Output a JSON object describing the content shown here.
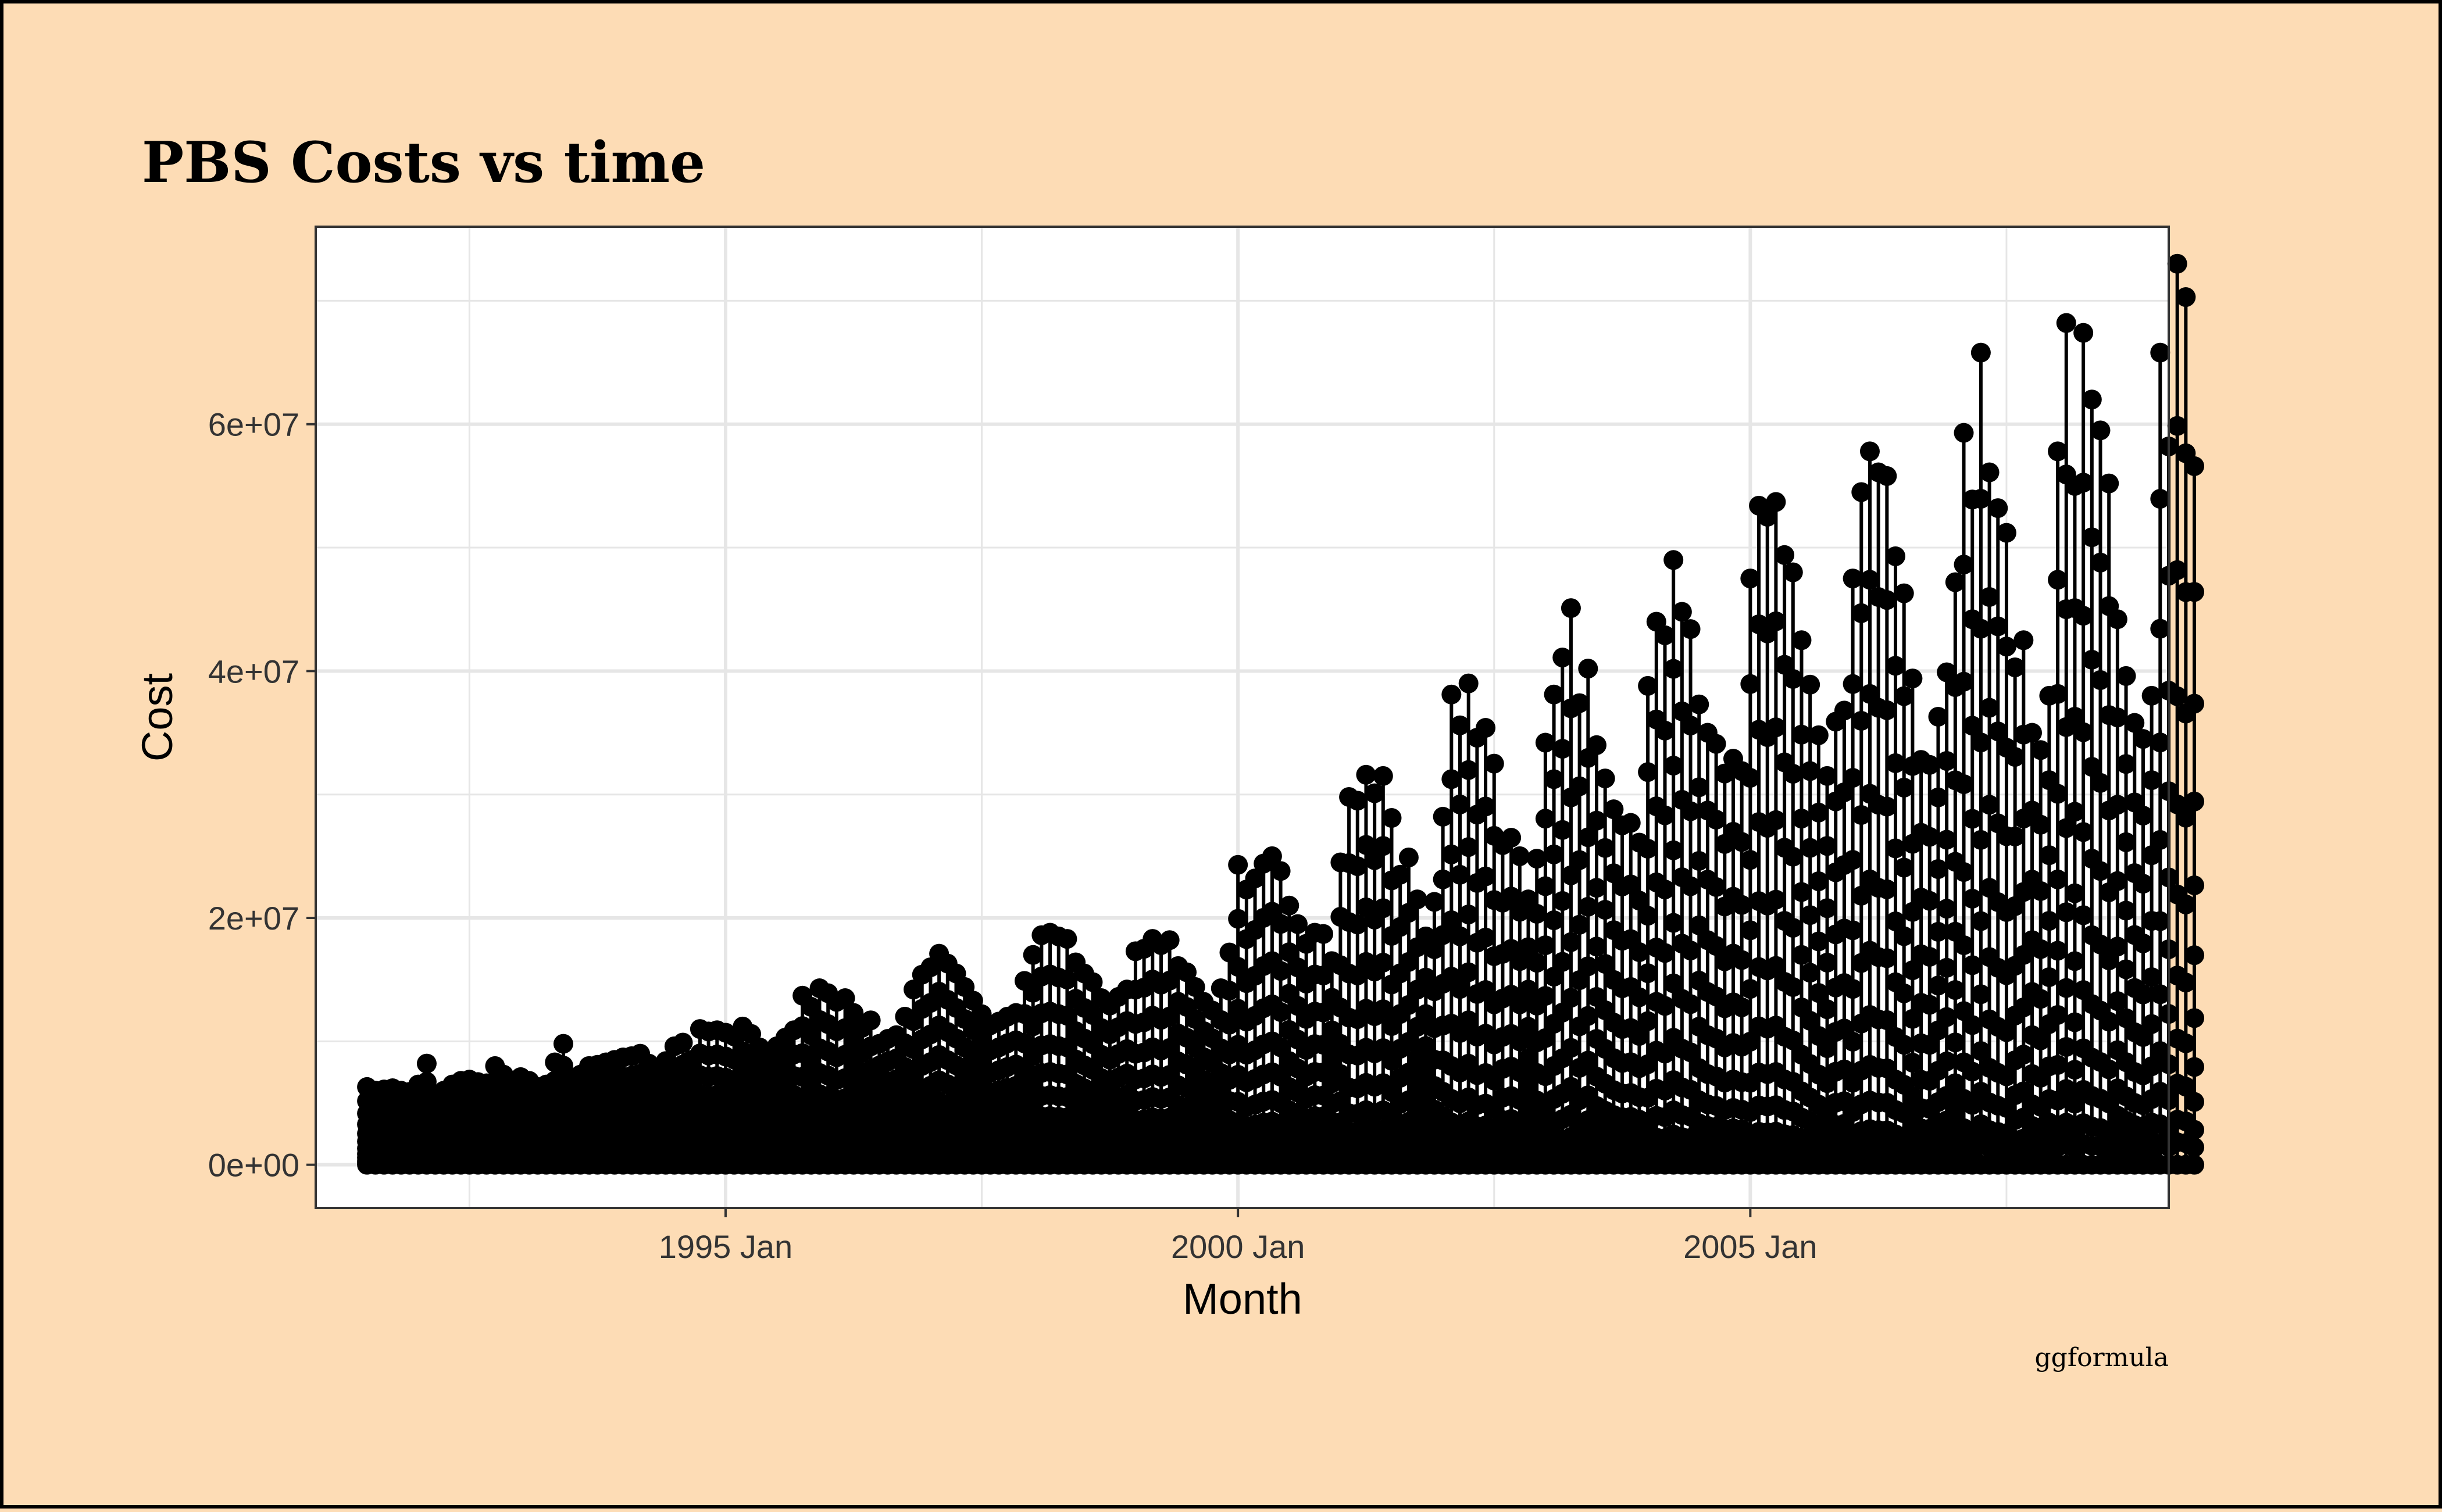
{
  "chart_data": {
    "type": "line",
    "title": "PBS Costs vs time",
    "xlabel": "Month",
    "ylabel": "Cost",
    "caption": "ggformula",
    "x_ticks": [
      "1995 Jan",
      "2000 Jan",
      "2005 Jan"
    ],
    "y_ticks": [
      "0e+00",
      "2e+07",
      "4e+07",
      "6e+07"
    ],
    "xlim": [
      "1991-01",
      "2009-02"
    ],
    "ylim": [
      -3500000,
      76000000
    ],
    "grid": true,
    "legend": "none",
    "colors": {
      "background": "#fddcb5",
      "panel": "#ffffff",
      "marks": "#000000",
      "grid": "#e6e6e6"
    },
    "start_month": "1991-07",
    "monthly_peak": [
      6300000,
      6000000,
      6100000,
      6200000,
      6000000,
      5900000,
      6500000,
      8200000,
      5600000,
      6000000,
      6500000,
      6800000,
      6900000,
      6700000,
      6600000,
      8000000,
      7300000,
      6800000,
      7100000,
      6800000,
      6300000,
      6500000,
      8300000,
      9800000,
      6800000,
      7300000,
      8000000,
      8100000,
      8300000,
      8500000,
      8700000,
      8800000,
      9000000,
      8200000,
      7800000,
      8400000,
      9600000,
      9900000,
      8500000,
      11000000,
      10800000,
      10900000,
      10700000,
      10400000,
      11200000,
      10600000,
      9500000,
      8700000,
      9600000,
      10300000,
      10900000,
      13700000,
      12800000,
      14300000,
      13900000,
      13200000,
      13500000,
      12300000,
      11100000,
      11700000,
      9800000,
      10200000,
      10500000,
      12000000,
      14200000,
      15400000,
      16000000,
      17100000,
      16300000,
      15500000,
      14400000,
      13300000,
      12200000,
      11300000,
      11600000,
      12000000,
      12300000,
      14900000,
      17000000,
      18600000,
      18800000,
      18500000,
      18300000,
      16400000,
      15500000,
      14800000,
      13500000,
      12900000,
      13600000,
      14200000,
      17300000,
      17500000,
      18300000,
      17800000,
      18200000,
      16100000,
      15600000,
      14400000,
      13200000,
      12500000,
      14300000,
      17200000,
      24300000,
      22300000,
      23200000,
      24400000,
      25000000,
      23800000,
      21000000,
      19500000,
      17900000,
      18800000,
      18700000,
      16500000,
      24500000,
      29800000,
      29500000,
      31600000,
      30100000,
      31500000,
      28100000,
      23500000,
      24900000,
      21500000,
      18500000,
      21300000,
      28200000,
      38100000,
      35600000,
      39000000,
      34600000,
      35400000,
      32500000,
      25900000,
      26500000,
      25000000,
      21500000,
      24800000,
      34200000,
      38100000,
      41100000,
      45100000,
      37400000,
      40200000,
      34000000,
      31300000,
      28800000,
      27500000,
      27700000,
      26100000,
      38800000,
      44000000,
      42900000,
      49000000,
      44800000,
      43400000,
      37300000,
      35000000,
      34100000,
      31700000,
      32900000,
      31900000,
      47500000,
      53400000,
      52500000,
      53700000,
      49400000,
      48000000,
      42500000,
      38900000,
      34800000,
      31500000,
      35900000,
      36800000,
      47500000,
      54500000,
      57800000,
      56100000,
      55800000,
      49300000,
      46300000,
      39400000,
      32800000,
      32400000,
      36300000,
      39900000,
      47200000,
      59300000,
      53900000,
      65800000,
      56100000,
      53200000,
      51200000,
      40300000,
      42500000,
      35000000,
      33600000,
      38000000,
      57800000,
      68200000,
      55000000,
      67400000,
      62000000,
      59500000,
      55200000,
      44200000,
      39600000,
      35800000,
      34500000,
      38000000,
      65800000,
      58200000,
      73000000,
      70300000,
      56600000
    ]
  }
}
